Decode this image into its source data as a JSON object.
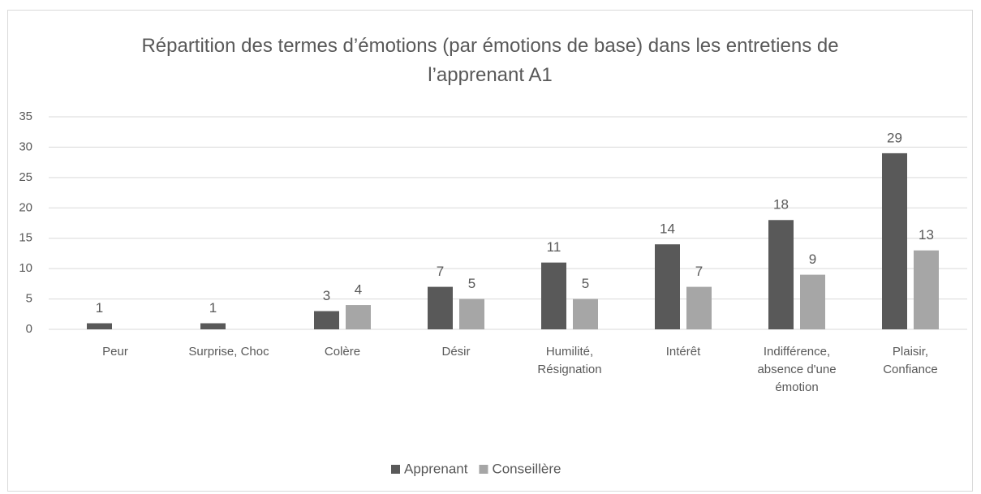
{
  "chart_data": {
    "type": "bar",
    "title": "Répartition des termes d’émotions (par émotions de base) dans les entretiens de l’apprenant A1",
    "categories": [
      "Peur",
      "Surprise, Choc",
      "Colère",
      "Désir",
      "Humilité, Résignation",
      "Intérêt",
      "Indifférence, absence d'une émotion",
      "Plaisir, Confiance"
    ],
    "series": [
      {
        "name": "Apprenant",
        "color": "#595959",
        "values": [
          1,
          1,
          3,
          7,
          11,
          14,
          18,
          29
        ]
      },
      {
        "name": "Conseillère",
        "color": "#a6a6a6",
        "values": [
          null,
          null,
          4,
          5,
          5,
          7,
          9,
          13
        ]
      }
    ],
    "ylim": [
      0,
      35
    ],
    "yticks": [
      0,
      5,
      10,
      15,
      20,
      25,
      30,
      35
    ],
    "grid": true,
    "legend": "bottom"
  }
}
